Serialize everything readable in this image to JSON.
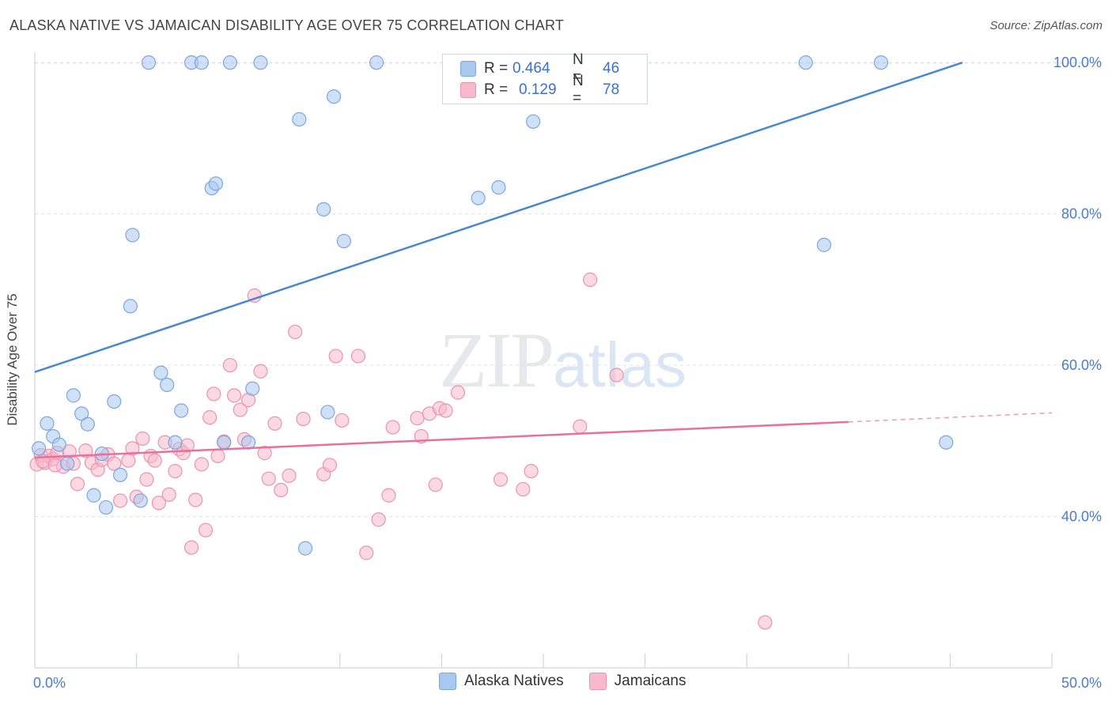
{
  "header": {
    "title": "ALASKA NATIVE VS JAMAICAN DISABILITY AGE OVER 75 CORRELATION CHART",
    "source": "Source: ZipAtlas.com"
  },
  "watermark": {
    "zip": "ZIP",
    "atlas": "atlas"
  },
  "legend": {
    "rows": [
      {
        "r_label": "R =",
        "r_value": "0.464",
        "n_label": "N =",
        "n_value": "46",
        "color": "#a9c8f0"
      },
      {
        "r_label": "R =",
        "r_value": "0.129",
        "n_label": "N =",
        "n_value": "78",
        "color": "#f7b9cb"
      }
    ]
  },
  "bottom_legend": {
    "items": [
      {
        "label": "Alaska Natives",
        "color": "#a9c8f0"
      },
      {
        "label": "Jamaicans",
        "color": "#f7b9cb"
      }
    ]
  },
  "chart_data": {
    "type": "scatter",
    "ylabel": "Disability Age Over 75",
    "xlim": [
      0,
      50
    ],
    "ylim": [
      20,
      102
    ],
    "x_tick_labels": [
      {
        "value": 0,
        "label": "0.0%"
      },
      {
        "value": 50,
        "label": "50.0%"
      }
    ],
    "y_tick_labels": [
      {
        "value": 100,
        "label": "100.0%"
      },
      {
        "value": 80,
        "label": "80.0%"
      },
      {
        "value": 60,
        "label": "60.0%"
      },
      {
        "value": 40,
        "label": "40.0%"
      }
    ],
    "grid": true,
    "colors": {
      "alaska": "#4a86d8",
      "alaska_fill": "#a9c8f0",
      "jamaica": "#e8709a",
      "jamaica_fill": "#f7b9cb",
      "grid": "#dfe3e8"
    },
    "series": [
      {
        "name": "Alaska Natives",
        "trend": {
          "x": [
            0,
            45.6
          ],
          "y": [
            59.1,
            100.0
          ]
        },
        "points": [
          [
            0.2,
            49.0
          ],
          [
            0.6,
            52.3
          ],
          [
            0.9,
            50.6
          ],
          [
            1.2,
            49.5
          ],
          [
            1.6,
            47.0
          ],
          [
            1.9,
            56.0
          ],
          [
            2.3,
            53.6
          ],
          [
            2.6,
            52.2
          ],
          [
            2.9,
            42.8
          ],
          [
            3.3,
            48.3
          ],
          [
            3.5,
            41.2
          ],
          [
            3.9,
            55.2
          ],
          [
            4.2,
            45.5
          ],
          [
            4.7,
            67.8
          ],
          [
            4.8,
            77.2
          ],
          [
            5.2,
            42.1
          ],
          [
            5.6,
            100.0
          ],
          [
            6.2,
            59.0
          ],
          [
            6.5,
            57.4
          ],
          [
            6.9,
            49.8
          ],
          [
            7.2,
            54.0
          ],
          [
            7.7,
            100.0
          ],
          [
            8.2,
            100.0
          ],
          [
            8.7,
            83.4
          ],
          [
            8.9,
            84.0
          ],
          [
            9.3,
            49.8
          ],
          [
            9.6,
            100.0
          ],
          [
            10.5,
            49.8
          ],
          [
            10.7,
            56.9
          ],
          [
            11.1,
            100.0
          ],
          [
            13.0,
            92.5
          ],
          [
            13.3,
            35.8
          ],
          [
            14.2,
            80.6
          ],
          [
            14.4,
            53.8
          ],
          [
            14.7,
            95.5
          ],
          [
            15.2,
            76.4
          ],
          [
            16.8,
            100.0
          ],
          [
            20.6,
            100.0
          ],
          [
            21.8,
            82.1
          ],
          [
            22.8,
            83.5
          ],
          [
            24.5,
            92.2
          ],
          [
            28.7,
            100.0
          ],
          [
            37.9,
            100.0
          ],
          [
            38.8,
            75.9
          ],
          [
            41.6,
            100.0
          ],
          [
            44.8,
            49.8
          ]
        ]
      },
      {
        "name": "Jamaicans",
        "trend": {
          "x": [
            0,
            40.0
          ],
          "y": [
            47.8,
            52.5
          ]
        },
        "trend_dashed": {
          "x": [
            40.0,
            50.0
          ],
          "y": [
            52.5,
            53.7
          ]
        },
        "points": [
          [
            0.1,
            46.9
          ],
          [
            0.3,
            48.1
          ],
          [
            0.5,
            47.1
          ],
          [
            0.7,
            48.0
          ],
          [
            0.9,
            47.6
          ],
          [
            1.1,
            48.4
          ],
          [
            1.4,
            46.6
          ],
          [
            1.7,
            48.6
          ],
          [
            1.9,
            47.0
          ],
          [
            2.1,
            44.3
          ],
          [
            2.5,
            48.7
          ],
          [
            2.8,
            47.1
          ],
          [
            3.1,
            46.2
          ],
          [
            3.3,
            47.5
          ],
          [
            3.6,
            48.2
          ],
          [
            3.9,
            47.0
          ],
          [
            4.2,
            42.1
          ],
          [
            4.6,
            47.4
          ],
          [
            4.8,
            49.0
          ],
          [
            5.0,
            42.6
          ],
          [
            5.3,
            50.3
          ],
          [
            5.5,
            44.9
          ],
          [
            5.7,
            48.0
          ],
          [
            5.9,
            47.4
          ],
          [
            6.1,
            41.8
          ],
          [
            6.4,
            49.8
          ],
          [
            6.6,
            42.9
          ],
          [
            6.9,
            46.0
          ],
          [
            7.1,
            48.9
          ],
          [
            7.3,
            48.4
          ],
          [
            7.5,
            49.4
          ],
          [
            7.7,
            35.9
          ],
          [
            7.9,
            42.2
          ],
          [
            8.2,
            46.9
          ],
          [
            8.4,
            38.2
          ],
          [
            8.6,
            53.1
          ],
          [
            8.8,
            56.2
          ],
          [
            9.0,
            48.0
          ],
          [
            9.3,
            49.9
          ],
          [
            9.6,
            60.0
          ],
          [
            9.8,
            56.0
          ],
          [
            10.1,
            54.1
          ],
          [
            10.3,
            50.2
          ],
          [
            10.5,
            55.4
          ],
          [
            10.8,
            69.2
          ],
          [
            11.1,
            59.2
          ],
          [
            11.3,
            48.4
          ],
          [
            11.5,
            45.0
          ],
          [
            11.8,
            52.3
          ],
          [
            12.1,
            43.5
          ],
          [
            12.5,
            45.4
          ],
          [
            12.8,
            64.4
          ],
          [
            13.2,
            52.9
          ],
          [
            14.2,
            45.6
          ],
          [
            14.5,
            46.8
          ],
          [
            14.8,
            61.2
          ],
          [
            15.1,
            52.7
          ],
          [
            15.9,
            61.2
          ],
          [
            16.3,
            35.2
          ],
          [
            16.9,
            39.6
          ],
          [
            17.4,
            42.8
          ],
          [
            17.6,
            51.8
          ],
          [
            18.8,
            53.0
          ],
          [
            19.0,
            50.6
          ],
          [
            19.4,
            53.6
          ],
          [
            19.7,
            44.2
          ],
          [
            19.9,
            54.3
          ],
          [
            20.2,
            54.0
          ],
          [
            20.8,
            56.4
          ],
          [
            22.9,
            44.9
          ],
          [
            24.0,
            43.6
          ],
          [
            24.4,
            46.0
          ],
          [
            26.8,
            51.9
          ],
          [
            27.3,
            71.3
          ],
          [
            28.6,
            58.7
          ],
          [
            35.9,
            26.0
          ],
          [
            0.4,
            47.3
          ],
          [
            1.0,
            46.8
          ]
        ]
      }
    ]
  }
}
